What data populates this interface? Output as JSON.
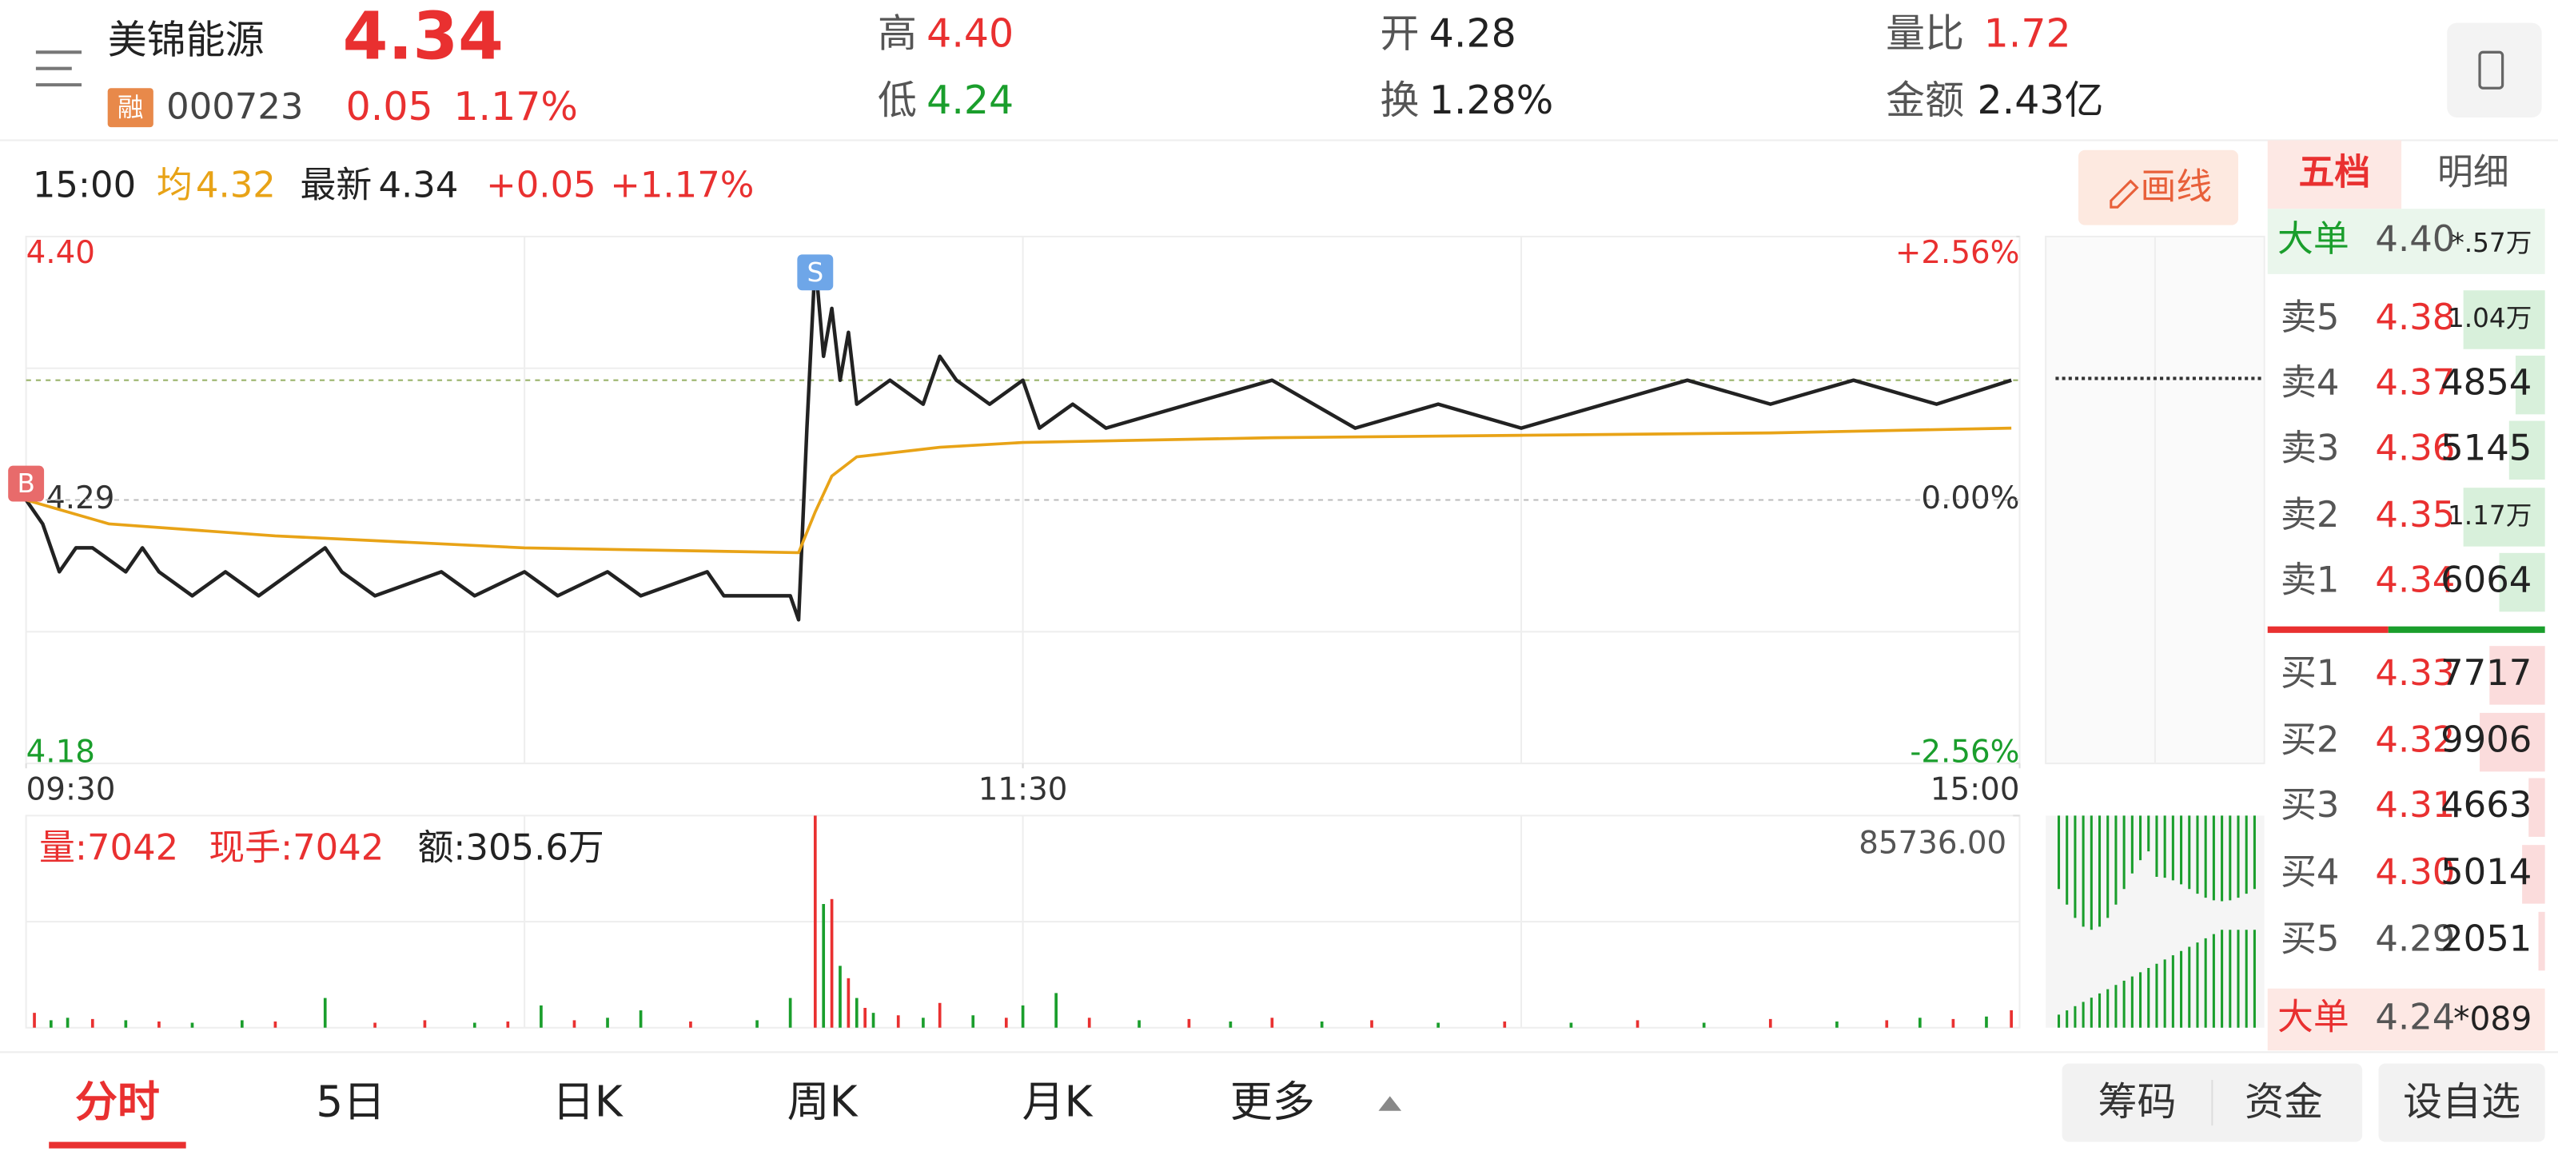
{
  "header": {
    "name": "美锦能源",
    "price": "4.34",
    "tag": "融",
    "code": "000723",
    "change": "0.05",
    "pct": "1.17%",
    "stats": [
      {
        "label": "高",
        "value": "4.40"
      },
      {
        "label": "低",
        "value": "4.24"
      },
      {
        "label": "开",
        "value": "4.28"
      },
      {
        "label": "换",
        "value": "1.28%"
      },
      {
        "label": "量比",
        "value": "1.72"
      },
      {
        "label": "金额",
        "value": "2.43亿"
      }
    ]
  },
  "info_bar": {
    "time": "15:00",
    "avg": "4.32",
    "latest": "4.34",
    "change": "+0.05",
    "pct": "+1.17%",
    "draw_button": "画线"
  },
  "volume_info": {
    "volume": "量:7042",
    "hand": "现手:7042",
    "amount": "额:305.6万"
  },
  "chart_data": [
    {
      "type": "line",
      "xlim": [
        0,
        240
      ],
      "ylim": [
        4.18,
        4.4
      ],
      "y2lim": [
        -2.56,
        2.56
      ],
      "xticks": [
        {
          "value": 0,
          "label": "09:30"
        },
        {
          "value": 120,
          "label": "11:30"
        },
        {
          "value": 240,
          "label": "15:00"
        }
      ],
      "yticks": [
        {
          "value": 4.4,
          "label": "4.40"
        },
        {
          "value": 4.29,
          "label": "4.29"
        },
        4.18
      ],
      "y2ticks": [
        {
          "value": 2.56,
          "label": "+2.56%"
        },
        {
          "value": 0,
          "label": "0.00%"
        },
        {
          "value": -2.56,
          "label": "-2.56%"
        }
      ],
      "series": [
        {
          "name": "最新",
          "color": "#222222",
          "x": [
            0,
            2,
            4,
            6,
            8,
            12,
            14,
            16,
            20,
            24,
            28,
            32,
            36,
            38,
            42,
            50,
            54,
            60,
            64,
            70,
            74,
            82,
            84,
            92,
            93,
            94,
            95,
            96,
            97,
            98,
            99,
            100,
            104,
            108,
            110,
            112,
            116,
            120,
            122,
            126,
            130,
            140,
            150,
            160,
            170,
            180,
            190,
            200,
            210,
            220,
            230,
            239
          ],
          "values": [
            4.29,
            4.28,
            4.26,
            4.27,
            4.27,
            4.26,
            4.27,
            4.26,
            4.25,
            4.26,
            4.25,
            4.26,
            4.27,
            4.26,
            4.25,
            4.26,
            4.25,
            4.26,
            4.25,
            4.26,
            4.25,
            4.26,
            4.25,
            4.25,
            4.24,
            4.32,
            4.39,
            4.35,
            4.37,
            4.34,
            4.36,
            4.33,
            4.34,
            4.33,
            4.35,
            4.34,
            4.33,
            4.34,
            4.32,
            4.33,
            4.32,
            4.33,
            4.34,
            4.32,
            4.33,
            4.32,
            4.33,
            4.34,
            4.33,
            4.34,
            4.33,
            4.34
          ]
        },
        {
          "name": "均",
          "color": "#e8a317",
          "x": [
            0,
            10,
            30,
            60,
            93,
            95,
            97,
            100,
            110,
            120,
            150,
            180,
            210,
            239
          ],
          "values": [
            4.29,
            4.28,
            4.275,
            4.27,
            4.268,
            4.285,
            4.3,
            4.308,
            4.312,
            4.314,
            4.316,
            4.317,
            4.318,
            4.32
          ]
        }
      ],
      "markers": [
        {
          "label": "B",
          "x": 0,
          "color": "#e86b6b"
        },
        {
          "label": "S",
          "x": 95,
          "color": "#6ea6e8"
        }
      ]
    },
    {
      "type": "bar",
      "xlim": [
        0,
        240
      ],
      "ylim": [
        0,
        85736
      ],
      "yticks": [
        {
          "value": 85736,
          "label": "85736.00"
        }
      ],
      "x": [
        1,
        3,
        5,
        8,
        12,
        16,
        20,
        26,
        30,
        36,
        42,
        48,
        54,
        58,
        62,
        66,
        70,
        74,
        80,
        88,
        92,
        95,
        96,
        97,
        98,
        99,
        100,
        101,
        102,
        105,
        108,
        110,
        114,
        118,
        120,
        124,
        128,
        134,
        140,
        145,
        150,
        156,
        162,
        170,
        178,
        186,
        194,
        202,
        210,
        218,
        224,
        228,
        232,
        236,
        239
      ],
      "values": [
        6000,
        3000,
        4000,
        3500,
        3000,
        2500,
        2000,
        3000,
        2500,
        12000,
        2000,
        3000,
        2000,
        2500,
        9000,
        3000,
        4000,
        7000,
        2500,
        3000,
        12000,
        85736,
        50000,
        52000,
        25000,
        20000,
        12000,
        8000,
        6000,
        5000,
        4000,
        10000,
        5000,
        4000,
        9000,
        14000,
        4000,
        3000,
        3500,
        2500,
        4000,
        2500,
        3000,
        2000,
        2500,
        2000,
        3000,
        2000,
        3500,
        2500,
        3000,
        4000,
        3500,
        4500,
        7042
      ],
      "colors": [
        "#e93030",
        "#1a9e2c",
        "#1a9e2c",
        "#e93030",
        "#1a9e2c",
        "#e93030",
        "#1a9e2c",
        "#1a9e2c",
        "#e93030",
        "#1a9e2c",
        "#e93030",
        "#e93030",
        "#1a9e2c",
        "#e93030",
        "#1a9e2c",
        "#e93030",
        "#1a9e2c",
        "#1a9e2c",
        "#e93030",
        "#1a9e2c",
        "#1a9e2c",
        "#e93030",
        "#1a9e2c",
        "#e93030",
        "#1a9e2c",
        "#e93030",
        "#1a9e2c",
        "#e93030",
        "#1a9e2c",
        "#e93030",
        "#1a9e2c",
        "#e93030",
        "#1a9e2c",
        "#e93030",
        "#1a9e2c",
        "#1a9e2c",
        "#e93030",
        "#1a9e2c",
        "#e93030",
        "#1a9e2c",
        "#e93030",
        "#1a9e2c",
        "#e93030",
        "#1a9e2c",
        "#e93030",
        "#1a9e2c",
        "#e93030",
        "#1a9e2c",
        "#e93030",
        "#1a9e2c",
        "#e93030",
        "#1a9e2c",
        "#e93030",
        "#1a9e2c",
        "#e93030"
      ]
    }
  ],
  "order_book": {
    "tabs": [
      "五档",
      "明细"
    ],
    "big_top": [
      "大单",
      "4.40",
      "*.57万"
    ],
    "asks": [
      [
        "卖5",
        "4.38",
        "1.04万"
      ],
      [
        "卖4",
        "4.37",
        "4854"
      ],
      [
        "卖3",
        "4.36",
        "5145"
      ],
      [
        "卖2",
        "4.35",
        "1.17万"
      ],
      [
        "卖1",
        "4.34",
        "6064"
      ]
    ],
    "bids": [
      [
        "买1",
        "4.33",
        "7717"
      ],
      [
        "买2",
        "4.32",
        "9906"
      ],
      [
        "买3",
        "4.31",
        "4663"
      ],
      [
        "买4",
        "4.30",
        "5014"
      ],
      [
        "买5",
        "4.29",
        "2051"
      ]
    ],
    "big_bottom": [
      "大单",
      "4.24",
      "*089"
    ]
  },
  "bottom_tabs": [
    "分时",
    "5日",
    "日K",
    "周K",
    "月K",
    "更多"
  ],
  "bottom_buttons": [
    "筹码",
    "资金",
    "设自选"
  ]
}
